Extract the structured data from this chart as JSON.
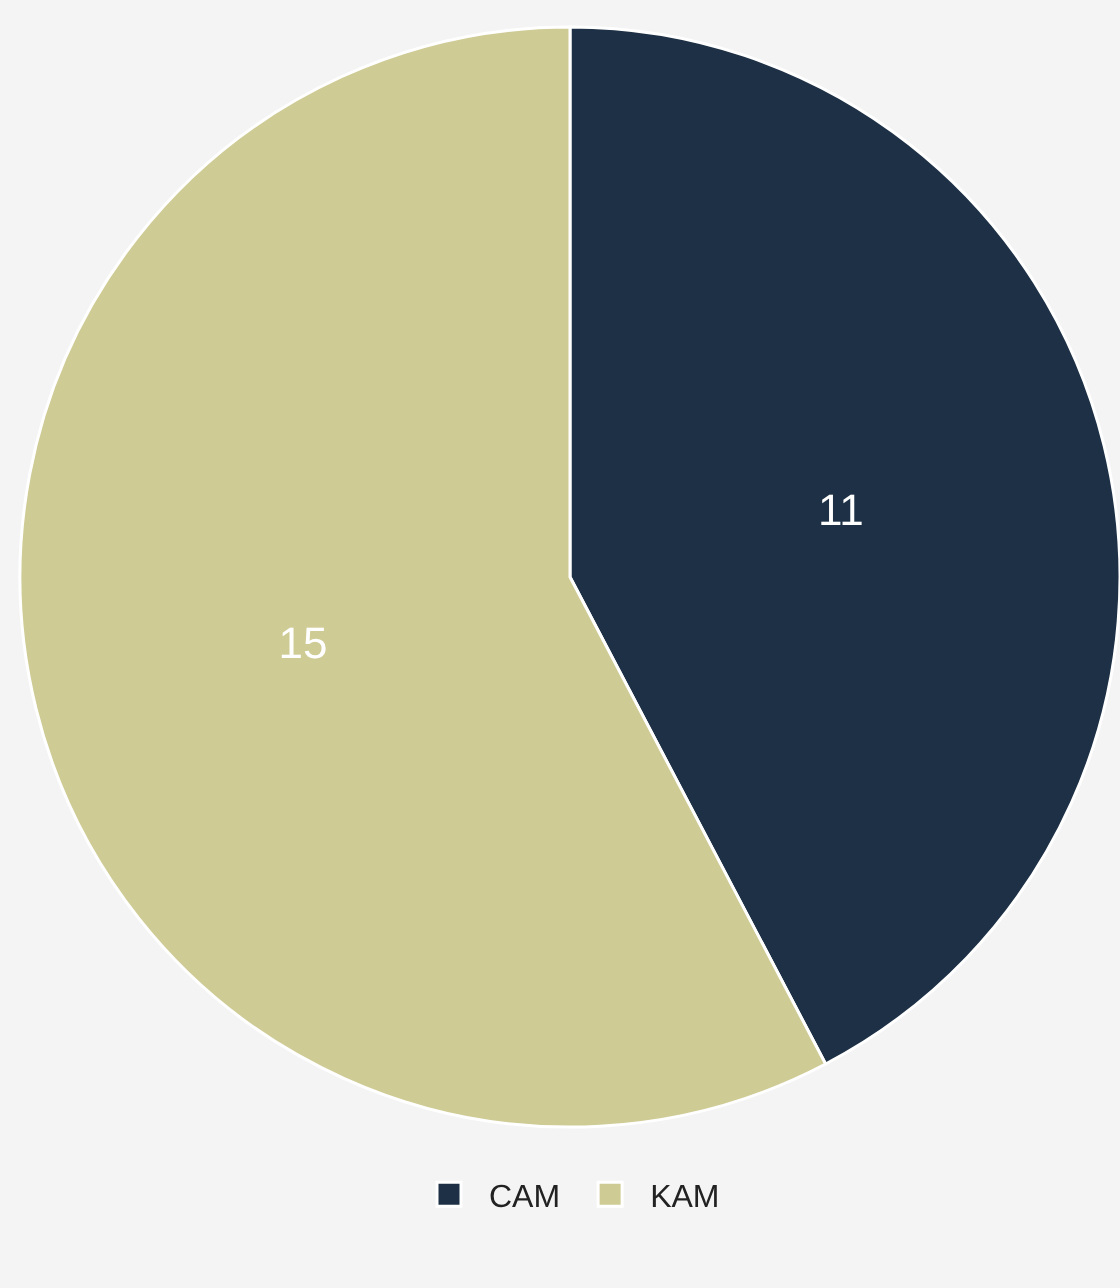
{
  "chart_data": {
    "type": "pie",
    "categories": [
      "CAM",
      "KAM"
    ],
    "values": [
      11,
      15
    ],
    "colors": [
      "#1d3045",
      "#cfcb95"
    ],
    "data_labels": true,
    "legend": "bottom"
  }
}
